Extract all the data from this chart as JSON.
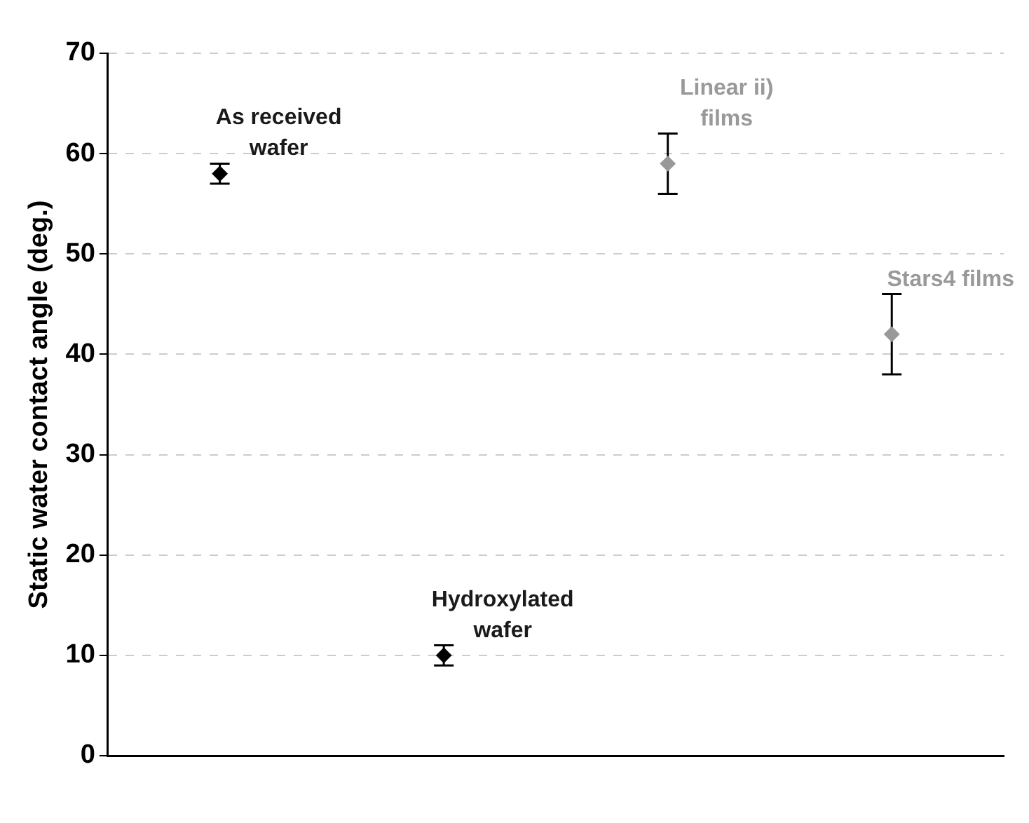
{
  "chart_data": {
    "type": "scatter",
    "ylabel": "Static water contact angle (deg.)",
    "categories": [
      null,
      null,
      null,
      null
    ],
    "ylim": [
      0,
      70
    ],
    "yticks": [
      0,
      10,
      20,
      30,
      40,
      50,
      60,
      70
    ],
    "grid": "y",
    "legend": false,
    "marker": "diamond",
    "tick_labels": "y",
    "series": [
      {
        "name": "As received wafer",
        "color": "#000000",
        "values": [
          58,
          null,
          null,
          null
        ],
        "errors": [
          1,
          null,
          null,
          null
        ]
      },
      {
        "name": "Hydroxylated wafer",
        "color": "#000000",
        "values": [
          null,
          10,
          null,
          null
        ],
        "errors": [
          null,
          1,
          null,
          null
        ]
      },
      {
        "name": "Linear ii) films",
        "color": "#999999",
        "values": [
          null,
          null,
          59,
          null
        ],
        "errors": [
          null,
          null,
          3,
          null
        ]
      },
      {
        "name": "Stars4 films",
        "color": "#999999",
        "values": [
          null,
          null,
          null,
          42
        ],
        "errors": [
          null,
          null,
          null,
          4
        ]
      }
    ]
  }
}
